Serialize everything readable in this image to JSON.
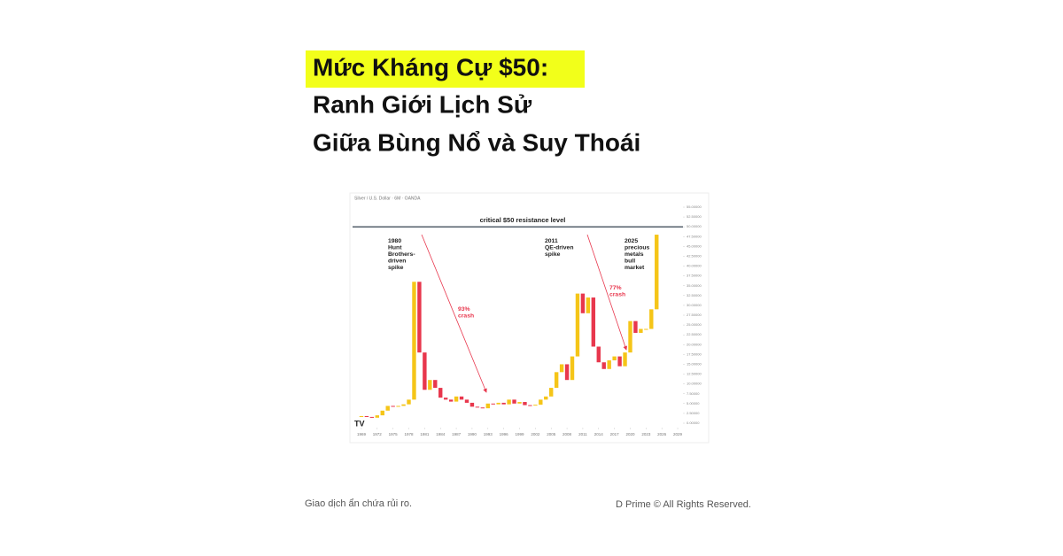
{
  "header": {
    "title_lines": [
      "Mức Kháng Cự $50:",
      "Ranh Giới Lịch Sử",
      "Giữa Bùng Nổ và Suy Thoái"
    ]
  },
  "chart_data": {
    "type": "candlestick",
    "subtitle": "Silver / U.S. Dollar · 6M · OANDA",
    "x": [
      1969,
      1970,
      1971,
      1972,
      1973,
      1974,
      1975,
      1976,
      1977,
      1978,
      1979,
      1980,
      1981,
      1982,
      1983,
      1984,
      1985,
      1986,
      1987,
      1988,
      1989,
      1990,
      1991,
      1992,
      1993,
      1994,
      1995,
      1996,
      1997,
      1998,
      1999,
      2000,
      2001,
      2002,
      2003,
      2004,
      2005,
      2006,
      2007,
      2008,
      2009,
      2010,
      2011,
      2012,
      2013,
      2014,
      2015,
      2016,
      2017,
      2018,
      2019,
      2020,
      2021,
      2022,
      2023,
      2024,
      2025
    ],
    "values": [
      1.8,
      1.6,
      1.4,
      2,
      3.2,
      4.4,
      4.2,
      4.4,
      4.8,
      6,
      36,
      18,
      8.5,
      11,
      9,
      6.5,
      6,
      5.5,
      6.8,
      6,
      5.2,
      4.2,
      4,
      3.8,
      5,
      4.8,
      5.2,
      4.8,
      6,
      5,
      5.4,
      4.6,
      4.5,
      4.7,
      6,
      6.8,
      9,
      13,
      15,
      11,
      17,
      33,
      28,
      32,
      19.5,
      15.5,
      13.8,
      16,
      17,
      14.5,
      18,
      26,
      23,
      24,
      24,
      29,
      48
    ],
    "up_color": "#f5c518",
    "down_color": "#e8374d",
    "resistance": 50,
    "resistance_label": "critical $50 resistance level",
    "annotations": [
      {
        "lines": [
          "1980",
          "Hunt",
          "Brothers-",
          "driven",
          "spike"
        ]
      },
      {
        "lines": [
          "93%",
          "crash"
        ],
        "color": "#e8374d"
      },
      {
        "lines": [
          "2011",
          "QE-driven",
          "spike"
        ]
      },
      {
        "lines": [
          "77%",
          "crash"
        ],
        "color": "#e8374d"
      },
      {
        "lines": [
          "2025",
          "precious",
          "metals",
          "bull",
          "market"
        ]
      }
    ],
    "xlim": [
      1968,
      2030
    ],
    "xticks": [
      1969,
      1972,
      1975,
      1978,
      1981,
      1984,
      1987,
      1990,
      1993,
      1996,
      1999,
      2002,
      2005,
      2008,
      2011,
      2014,
      2017,
      2020,
      2023,
      2026,
      2029
    ],
    "ylim": [
      0,
      55
    ],
    "yticks": [
      {
        "value": 0,
        "label": "0.00000"
      },
      {
        "value": 2.5,
        "label": "2.50000"
      },
      {
        "value": 5,
        "label": "5.00000"
      },
      {
        "value": 7.5,
        "label": "7.50000"
      },
      {
        "value": 10,
        "label": "10.00000"
      },
      {
        "value": 12.5,
        "label": "12.50000"
      },
      {
        "value": 15,
        "label": "15.00000"
      },
      {
        "value": 17.5,
        "label": "17.50000"
      },
      {
        "value": 20,
        "label": "20.00000"
      },
      {
        "value": 22.5,
        "label": "22.50000"
      },
      {
        "value": 25,
        "label": "25.00000"
      },
      {
        "value": 27.5,
        "label": "27.50000"
      },
      {
        "value": 30,
        "label": "30.00000"
      },
      {
        "value": 32.5,
        "label": "32.50000"
      },
      {
        "value": 35,
        "label": "35.00000"
      },
      {
        "value": 37.5,
        "label": "37.50000"
      },
      {
        "value": 40,
        "label": "40.00000"
      },
      {
        "value": 42.5,
        "label": "42.50000"
      },
      {
        "value": 45,
        "label": "45.00000"
      },
      {
        "value": 47.5,
        "label": "47.50000"
      },
      {
        "value": 50,
        "label": "50.00000"
      },
      {
        "value": 52.5,
        "label": "52.50000"
      },
      {
        "value": 55,
        "label": "55.00000"
      }
    ]
  },
  "footer": {
    "disclaimer": "Giao dịch ẩn chứa rủi ro.",
    "copyright": "D Prime © All Rights Reserved."
  }
}
